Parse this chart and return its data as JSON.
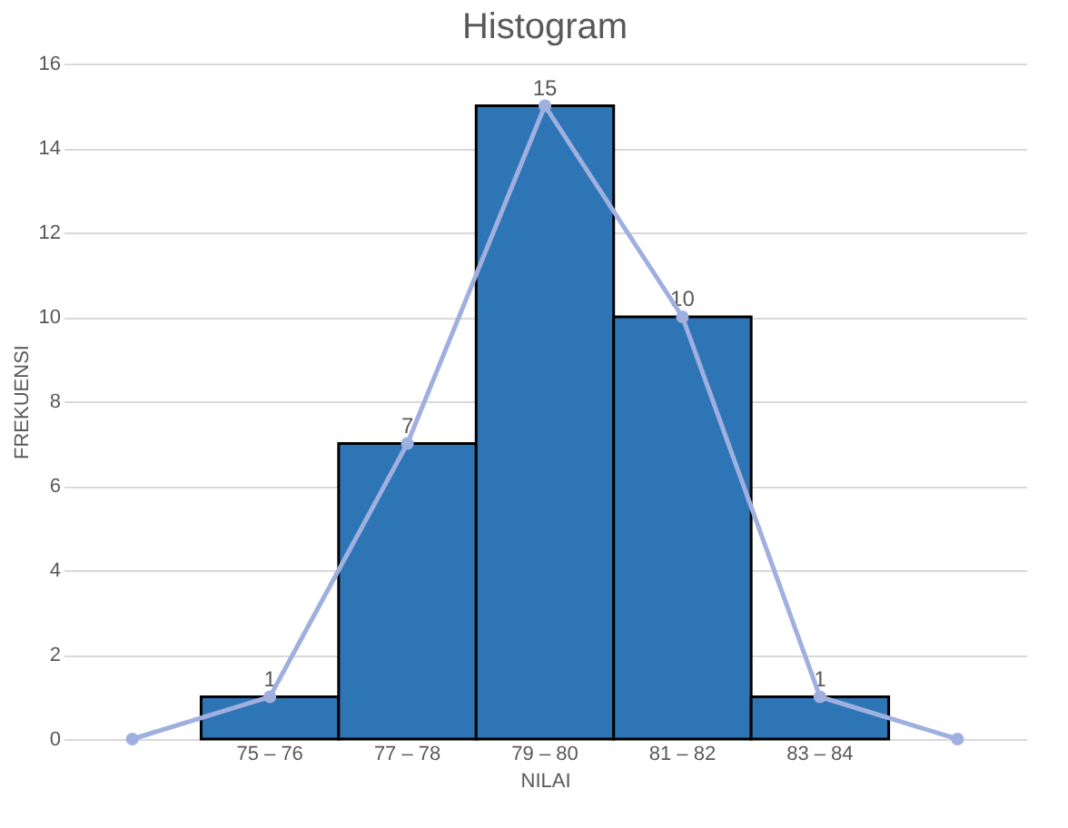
{
  "chart_data": {
    "type": "bar",
    "title": "Histogram",
    "xlabel": "NILAI",
    "ylabel": "FREKUENSI",
    "categories": [
      null,
      "75 – 76",
      "77 – 78",
      "79 – 80",
      "81 – 82",
      "83 – 84",
      null
    ],
    "series": [
      {
        "color": "#2e75b6",
        "values": [
          null,
          1,
          7,
          15,
          10,
          1,
          null
        ],
        "value_labels": [
          null,
          "1",
          "7",
          "15",
          "10",
          "1",
          null
        ]
      },
      {
        "type": "line",
        "color": "#9fb0e0",
        "marker": "circle",
        "values": [
          0,
          1,
          7,
          15,
          10,
          1,
          0
        ]
      }
    ],
    "ylim": [
      0,
      16
    ],
    "yticks": [
      0,
      2,
      4,
      6,
      8,
      10,
      12,
      14,
      16
    ],
    "grid": "y"
  }
}
